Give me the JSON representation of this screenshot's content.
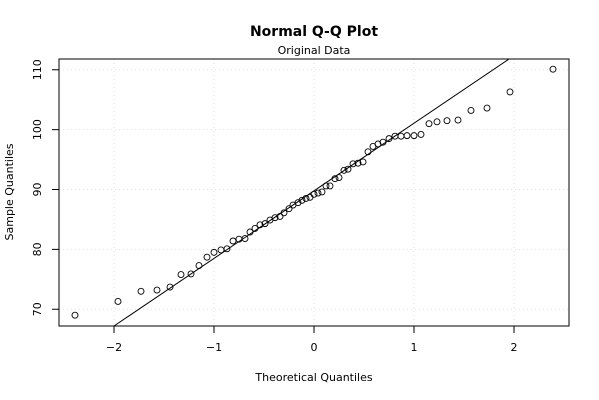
{
  "chart_data": {
    "type": "scatter",
    "title": "Normal Q-Q Plot",
    "subtitle": "Original Data",
    "xlabel": "Theoretical Quantiles",
    "ylabel": "Sample Quantiles",
    "xlim": [
      -2.55,
      2.55
    ],
    "ylim": [
      67.2,
      111.8
    ],
    "xticks": [
      -2,
      -1,
      0,
      1,
      2
    ],
    "yticks": [
      70,
      80,
      90,
      100,
      110
    ],
    "grid": true,
    "legend": "none",
    "marker": "open-circle",
    "reference_line": {
      "type": "qq-line",
      "points": [
        [
          -2.0,
          67.2
        ],
        [
          1.95,
          111.8
        ]
      ]
    },
    "points": [
      [
        -2.39,
        69.0
      ],
      [
        -1.96,
        71.3
      ],
      [
        -1.73,
        73.0
      ],
      [
        -1.57,
        73.2
      ],
      [
        -1.44,
        73.7
      ],
      [
        -1.33,
        75.8
      ],
      [
        -1.23,
        75.9
      ],
      [
        -1.15,
        77.3
      ],
      [
        -1.07,
        78.7
      ],
      [
        -1.0,
        79.5
      ],
      [
        -0.93,
        79.9
      ],
      [
        -0.87,
        80.1
      ],
      [
        -0.81,
        81.4
      ],
      [
        -0.75,
        81.7
      ],
      [
        -0.69,
        81.8
      ],
      [
        -0.64,
        82.9
      ],
      [
        -0.59,
        83.5
      ],
      [
        -0.54,
        84.1
      ],
      [
        -0.49,
        84.3
      ],
      [
        -0.44,
        84.9
      ],
      [
        -0.39,
        85.3
      ],
      [
        -0.34,
        85.5
      ],
      [
        -0.3,
        86.1
      ],
      [
        -0.25,
        86.8
      ],
      [
        -0.21,
        87.4
      ],
      [
        -0.16,
        87.8
      ],
      [
        -0.12,
        88.2
      ],
      [
        -0.08,
        88.5
      ],
      [
        -0.04,
        88.7
      ],
      [
        0.0,
        89.2
      ],
      [
        0.04,
        89.4
      ],
      [
        0.08,
        89.6
      ],
      [
        0.12,
        90.6
      ],
      [
        0.16,
        90.6
      ],
      [
        0.21,
        91.8
      ],
      [
        0.25,
        92.0
      ],
      [
        0.3,
        93.2
      ],
      [
        0.34,
        93.4
      ],
      [
        0.39,
        94.3
      ],
      [
        0.44,
        94.4
      ],
      [
        0.49,
        94.6
      ],
      [
        0.54,
        96.3
      ],
      [
        0.59,
        97.2
      ],
      [
        0.64,
        97.6
      ],
      [
        0.69,
        97.9
      ],
      [
        0.75,
        98.5
      ],
      [
        0.81,
        98.9
      ],
      [
        0.87,
        98.9
      ],
      [
        0.93,
        99.0
      ],
      [
        1.0,
        99.0
      ],
      [
        1.07,
        99.2
      ],
      [
        1.15,
        101.0
      ],
      [
        1.23,
        101.3
      ],
      [
        1.33,
        101.5
      ],
      [
        1.44,
        101.6
      ],
      [
        1.57,
        103.2
      ],
      [
        1.73,
        103.6
      ],
      [
        1.96,
        106.3
      ],
      [
        2.39,
        110.1
      ]
    ]
  }
}
